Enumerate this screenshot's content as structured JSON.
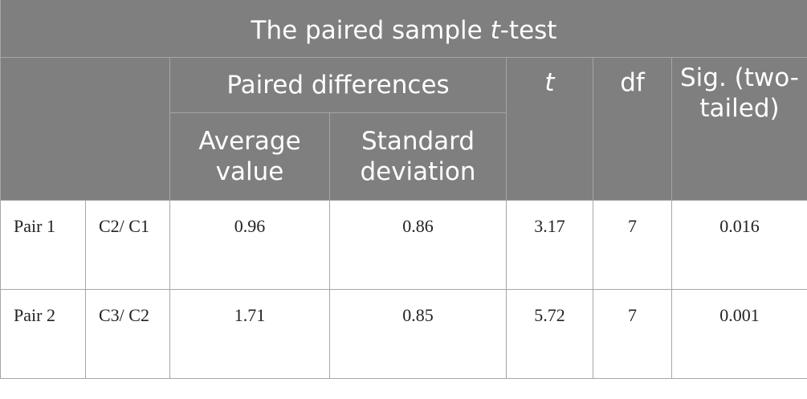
{
  "table": {
    "title_pre": "The paired sample ",
    "title_italic": "t",
    "title_post": "-test",
    "headers": {
      "paired_differences": "Paired differences",
      "average_value": "Average value",
      "standard_deviation": "Standard deviation",
      "t": "t",
      "df": "df",
      "sig": "Sig. (two-tailed)"
    },
    "rows": [
      {
        "pair": "Pair 1",
        "condition": "C2/ C1",
        "average": "0.96",
        "std": "0.86",
        "t": "3.17",
        "df": "7",
        "sig": "0.016"
      },
      {
        "pair": "Pair 2",
        "condition": "C3/ C2",
        "average": "1.71",
        "std": "0.85",
        "t": "5.72",
        "df": "7",
        "sig": "0.001"
      }
    ]
  },
  "colors": {
    "header_bg": "#7f7f7f",
    "header_text": "#ffffff",
    "border": "#a6a6a6",
    "body_text": "#222222"
  }
}
